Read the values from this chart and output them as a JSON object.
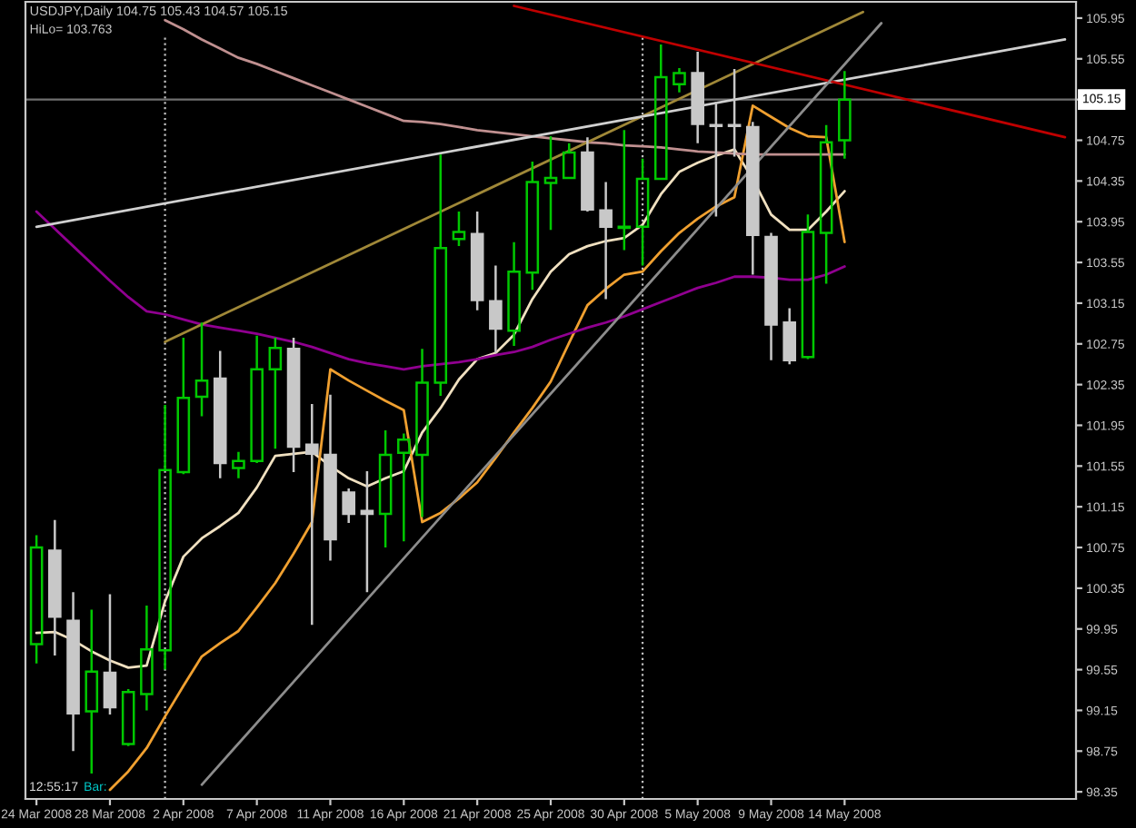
{
  "chart_data": {
    "type": "candlestick",
    "title": "USDJPY,Daily 104.75 105.43 104.57 105.15",
    "annotations": [
      "HiLo= 103.763",
      "12:55:17",
      "Bar:"
    ],
    "categories": [
      "24 Mar 2008",
      null,
      null,
      null,
      "28 Mar 2008",
      null,
      null,
      null,
      "2 Apr 2008",
      null,
      null,
      null,
      "7 Apr 2008",
      null,
      null,
      null,
      "11 Apr 2008",
      null,
      null,
      null,
      "16 Apr 2008",
      null,
      null,
      null,
      "21 Apr 2008",
      null,
      null,
      null,
      "25 Apr 2008",
      null,
      null,
      null,
      "30 Apr 2008",
      null,
      null,
      null,
      "5 May 2008",
      null,
      null,
      null,
      "9 May 2008",
      null,
      null,
      null,
      "14 May 2008",
      null,
      null,
      null,
      null,
      null,
      null,
      null,
      null,
      null,
      null,
      null,
      null
    ],
    "ohlc": [
      [
        99.8,
        100.87,
        99.61,
        100.75
      ],
      [
        100.72,
        101.02,
        99.69,
        100.07
      ],
      [
        100.03,
        100.31,
        98.75,
        99.12
      ],
      [
        99.14,
        100.14,
        98.53,
        99.53
      ],
      [
        99.52,
        100.29,
        99.11,
        99.18
      ],
      [
        98.82,
        99.36,
        98.8,
        99.33
      ],
      [
        99.31,
        100.18,
        99.15,
        99.75
      ],
      [
        99.74,
        102.15,
        99.55,
        101.51
      ],
      [
        101.49,
        102.81,
        101.47,
        102.22
      ],
      [
        102.23,
        102.96,
        102.04,
        102.39
      ],
      [
        102.41,
        102.68,
        101.43,
        101.58
      ],
      [
        101.53,
        101.69,
        101.43,
        101.6
      ],
      [
        101.6,
        102.83,
        101.58,
        102.5
      ],
      [
        102.5,
        102.81,
        101.72,
        102.71
      ],
      [
        102.7,
        102.81,
        101.49,
        101.74
      ],
      [
        101.76,
        102.16,
        99.99,
        101.67
      ],
      [
        101.66,
        102.25,
        100.62,
        100.83
      ],
      [
        101.29,
        101.33,
        100.99,
        101.08
      ],
      [
        101.11,
        101.5,
        100.31,
        101.08
      ],
      [
        101.08,
        101.9,
        100.75,
        101.66
      ],
      [
        101.68,
        101.87,
        100.81,
        101.81
      ],
      [
        101.66,
        102.7,
        101.05,
        102.37
      ],
      [
        102.37,
        104.61,
        102.24,
        103.69
      ],
      [
        103.78,
        104.05,
        103.71,
        103.85
      ],
      [
        103.83,
        104.05,
        103.08,
        103.18
      ],
      [
        103.17,
        103.52,
        102.66,
        102.9
      ],
      [
        102.88,
        103.75,
        102.73,
        103.46
      ],
      [
        103.45,
        104.54,
        103.28,
        104.34
      ],
      [
        104.33,
        104.79,
        103.87,
        104.38
      ],
      [
        104.38,
        104.72,
        104.37,
        104.63
      ],
      [
        104.63,
        104.78,
        104.05,
        104.07
      ],
      [
        104.06,
        104.34,
        103.19,
        103.9
      ],
      [
        103.89,
        104.85,
        103.67,
        103.9
      ],
      [
        103.9,
        104.57,
        103.52,
        104.37
      ],
      [
        104.37,
        105.69,
        104.36,
        105.37
      ],
      [
        105.3,
        105.46,
        105.22,
        105.41
      ],
      [
        105.41,
        105.62,
        104.72,
        104.91
      ],
      [
        104.9,
        105.13,
        104.0,
        104.89
      ],
      [
        104.9,
        105.45,
        104.59,
        104.89
      ],
      [
        104.88,
        104.93,
        103.43,
        103.82
      ],
      [
        103.8,
        103.84,
        102.59,
        102.94
      ],
      [
        102.96,
        103.1,
        102.55,
        102.59
      ],
      [
        102.62,
        104.02,
        102.6,
        103.85
      ],
      [
        103.84,
        104.9,
        103.34,
        104.73
      ],
      [
        104.75,
        105.43,
        104.57,
        105.15
      ],
      null,
      null,
      null,
      null,
      null,
      null,
      null,
      null,
      null,
      null,
      null,
      null
    ],
    "colors": [
      "#00c800",
      "#c8c8c8",
      "#c8c8c8",
      "#00c800",
      "#c8c8c8",
      "#00c800",
      "#00c800",
      "#00c800",
      "#00c800",
      "#00c800",
      "#c8c8c8",
      "#00c800",
      "#00c800",
      "#00c800",
      "#c8c8c8",
      "#c8c8c8",
      "#c8c8c8",
      "#c8c8c8",
      "#c8c8c8",
      "#00c800",
      "#00c800",
      "#00c800",
      "#00c800",
      "#00c800",
      "#c8c8c8",
      "#c8c8c8",
      "#00c800",
      "#00c800",
      "#00c800",
      "#00c800",
      "#c8c8c8",
      "#c8c8c8",
      "#00c800",
      "#00c800",
      "#00c800",
      "#00c800",
      "#c8c8c8",
      "#c8c8c8",
      "#c8c8c8",
      "#c8c8c8",
      "#c8c8c8",
      "#c8c8c8",
      "#00c800",
      "#00c800",
      "#00c800",
      null,
      null,
      null,
      null,
      null,
      null,
      null,
      null,
      null,
      null,
      null,
      null
    ],
    "series": [
      {
        "type": "line",
        "color": "#f0e0c0",
        "values": [
          99.91,
          99.92,
          99.84,
          99.73,
          99.64,
          99.57,
          99.59,
          100.22,
          100.66,
          100.84,
          100.96,
          101.09,
          101.34,
          101.65,
          101.67,
          101.69,
          101.55,
          101.43,
          101.35,
          101.43,
          101.5,
          101.88,
          102.12,
          102.4,
          102.6,
          102.66,
          102.84,
          103.19,
          103.46,
          103.63,
          103.71,
          103.76,
          103.79,
          103.92,
          104.22,
          104.44,
          104.53,
          104.6,
          104.66,
          104.37,
          104.02,
          103.87,
          103.87,
          104.05,
          104.25,
          null,
          null,
          null,
          null,
          null,
          null,
          null,
          null,
          null,
          null,
          null,
          null
        ]
      },
      {
        "type": "line",
        "color": "#f0a030",
        "values": [
          null,
          null,
          null,
          null,
          98.37,
          98.55,
          98.78,
          99.09,
          99.39,
          99.68,
          99.81,
          99.93,
          100.16,
          100.4,
          100.69,
          101.0,
          102.5,
          102.39,
          102.29,
          102.19,
          102.1,
          101.0,
          101.09,
          101.23,
          101.39,
          101.63,
          101.88,
          102.12,
          102.38,
          102.76,
          103.13,
          103.29,
          103.43,
          103.46,
          103.66,
          103.84,
          103.98,
          104.1,
          104.19,
          105.09,
          104.98,
          104.87,
          104.79,
          104.78,
          103.75,
          null,
          null,
          null,
          null,
          null,
          null,
          null,
          null,
          null,
          null,
          null,
          null
        ]
      },
      {
        "type": "line",
        "color": "#c09090",
        "values": [
          null,
          null,
          null,
          null,
          null,
          null,
          null,
          105.93,
          105.84,
          105.74,
          105.65,
          105.56,
          105.5,
          105.43,
          105.36,
          105.29,
          105.22,
          105.15,
          105.08,
          105.01,
          104.94,
          104.93,
          104.91,
          104.88,
          104.85,
          104.83,
          104.81,
          104.79,
          104.77,
          104.75,
          104.73,
          104.72,
          104.7,
          104.69,
          104.68,
          104.66,
          104.64,
          104.63,
          104.62,
          104.61,
          104.61,
          104.61,
          104.61,
          104.61,
          104.61,
          null,
          null,
          null,
          null,
          null,
          null,
          null,
          null,
          null,
          null,
          null,
          null
        ]
      },
      {
        "type": "line",
        "color": "#900090",
        "values": [
          104.05,
          103.88,
          103.71,
          103.54,
          103.37,
          103.21,
          103.07,
          103.04,
          102.99,
          102.94,
          102.91,
          102.88,
          102.85,
          102.81,
          102.77,
          102.72,
          102.66,
          102.6,
          102.56,
          102.53,
          102.5,
          102.53,
          102.55,
          102.57,
          102.6,
          102.64,
          102.67,
          102.72,
          102.79,
          102.85,
          102.91,
          102.96,
          103.02,
          103.09,
          103.16,
          103.23,
          103.3,
          103.35,
          103.41,
          103.41,
          103.4,
          103.38,
          103.38,
          103.43,
          103.51,
          null,
          null,
          null,
          null,
          null,
          null,
          null,
          null,
          null,
          null,
          null,
          null
        ]
      },
      {
        "type": "line",
        "color": "#a08838",
        "values": [
          null,
          null,
          null,
          null,
          null,
          null,
          null,
          102.77,
          null,
          null,
          null,
          null,
          null,
          null,
          null,
          null,
          null,
          null,
          null,
          null,
          null,
          null,
          null,
          null,
          null,
          null,
          null,
          null,
          null,
          null,
          null,
          null,
          null,
          null,
          null,
          null,
          null,
          null,
          null,
          null,
          null,
          null,
          null,
          null,
          null,
          106.01,
          null,
          null,
          null,
          null,
          null,
          null,
          null,
          null,
          null,
          null,
          null
        ]
      },
      {
        "type": "line",
        "color": "#d0d0d0",
        "values": [
          103.9,
          null,
          null,
          null,
          null,
          null,
          null,
          null,
          null,
          null,
          null,
          null,
          null,
          null,
          null,
          null,
          null,
          null,
          null,
          null,
          null,
          null,
          null,
          null,
          null,
          null,
          null,
          null,
          null,
          null,
          null,
          null,
          null,
          null,
          null,
          null,
          null,
          null,
          null,
          null,
          null,
          null,
          null,
          null,
          null,
          null,
          null,
          null,
          null,
          null,
          null,
          null,
          null,
          null,
          null,
          null,
          105.74
        ]
      },
      {
        "type": "line",
        "color": "#c00000",
        "values": [
          null,
          null,
          null,
          null,
          null,
          null,
          null,
          null,
          null,
          null,
          null,
          null,
          null,
          null,
          null,
          null,
          null,
          null,
          null,
          null,
          null,
          null,
          null,
          null,
          null,
          null,
          106.07,
          null,
          null,
          null,
          null,
          null,
          null,
          null,
          null,
          null,
          null,
          null,
          null,
          null,
          null,
          null,
          null,
          null,
          null,
          null,
          null,
          null,
          null,
          null,
          null,
          null,
          null,
          null,
          null,
          null,
          104.78
        ]
      },
      {
        "type": "line",
        "color": "#8c8c8c",
        "values": [
          null,
          null,
          null,
          null,
          null,
          null,
          null,
          null,
          null,
          98.42,
          null,
          null,
          null,
          null,
          null,
          null,
          null,
          null,
          null,
          null,
          null,
          null,
          null,
          null,
          null,
          null,
          null,
          null,
          null,
          null,
          null,
          null,
          null,
          null,
          null,
          null,
          null,
          null,
          null,
          null,
          null,
          null,
          null,
          null,
          null,
          null,
          105.9,
          null,
          null,
          null,
          null,
          null,
          null,
          null,
          null,
          null,
          null
        ]
      }
    ],
    "ylim": [
      98.28,
      106.11
    ],
    "yticks": [
      105.95,
      105.55,
      {
        "value": 105.15,
        "label": null
      },
      104.75,
      104.35,
      103.95,
      103.55,
      103.15,
      102.75,
      102.35,
      101.95,
      101.55,
      101.15,
      100.75,
      100.35,
      99.95,
      99.55,
      99.15,
      98.75,
      98.35
    ],
    "ref_lines": [
      {
        "axis": "y",
        "value": 105.15,
        "label": "105.15",
        "color": "#707070"
      }
    ]
  }
}
